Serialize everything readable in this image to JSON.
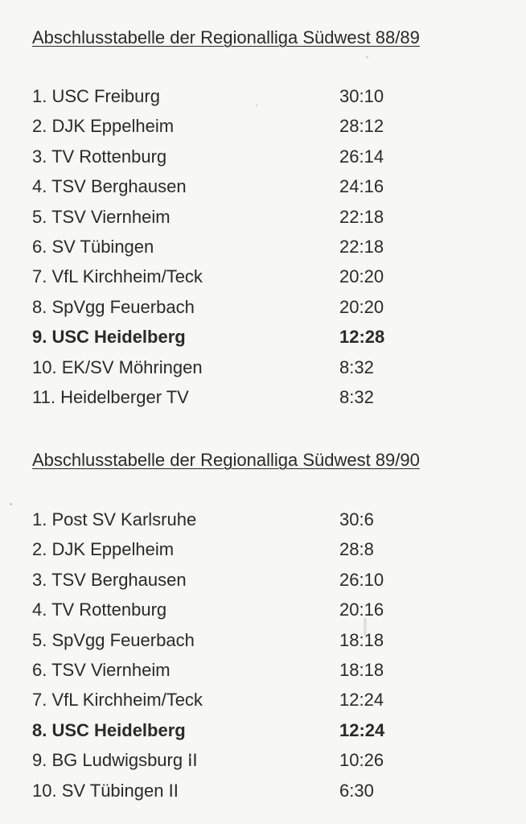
{
  "tables": [
    {
      "title": "Abschlusstabelle der Regionalliga Südwest 88/89",
      "rows": [
        {
          "team": "1. USC Freiburg",
          "score": "30:10",
          "bold": false
        },
        {
          "team": "2. DJK Eppelheim",
          "score": "28:12",
          "bold": false
        },
        {
          "team": "3. TV Rottenburg",
          "score": "26:14",
          "bold": false
        },
        {
          "team": "4. TSV Berghausen",
          "score": "24:16",
          "bold": false
        },
        {
          "team": "5. TSV Viernheim",
          "score": "22:18",
          "bold": false
        },
        {
          "team": "6. SV Tübingen",
          "score": "22:18",
          "bold": false
        },
        {
          "team": "7. VfL Kirchheim/Teck",
          "score": "20:20",
          "bold": false
        },
        {
          "team": "8. SpVgg Feuerbach",
          "score": "20:20",
          "bold": false
        },
        {
          "team": "9. USC Heidelberg",
          "score": "12:28",
          "bold": true
        },
        {
          "team": "10. EK/SV Möhringen",
          "score": "8:32",
          "bold": false
        },
        {
          "team": "11. Heidelberger TV",
          "score": "8:32",
          "bold": false
        }
      ]
    },
    {
      "title": "Abschlusstabelle der Regionalliga Südwest 89/90",
      "rows": [
        {
          "team": "1. Post SV Karlsruhe",
          "score": "30:6",
          "bold": false
        },
        {
          "team": "2. DJK Eppelheim",
          "score": "28:8",
          "bold": false
        },
        {
          "team": "3. TSV Berghausen",
          "score": "26:10",
          "bold": false
        },
        {
          "team": "4. TV Rottenburg",
          "score": "20:16",
          "bold": false
        },
        {
          "team": "5. SpVgg Feuerbach",
          "score": "18:18",
          "bold": false
        },
        {
          "team": "6. TSV Viernheim",
          "score": "18:18",
          "bold": false
        },
        {
          "team": "7. VfL Kirchheim/Teck",
          "score": "12:24",
          "bold": false
        },
        {
          "team": "8. USC Heidelberg",
          "score": "12:24",
          "bold": true
        },
        {
          "team": "9. BG Ludwigsburg II",
          "score": "10:26",
          "bold": false
        },
        {
          "team": "10. SV Tübingen II",
          "score": "6:30",
          "bold": false
        }
      ]
    }
  ]
}
